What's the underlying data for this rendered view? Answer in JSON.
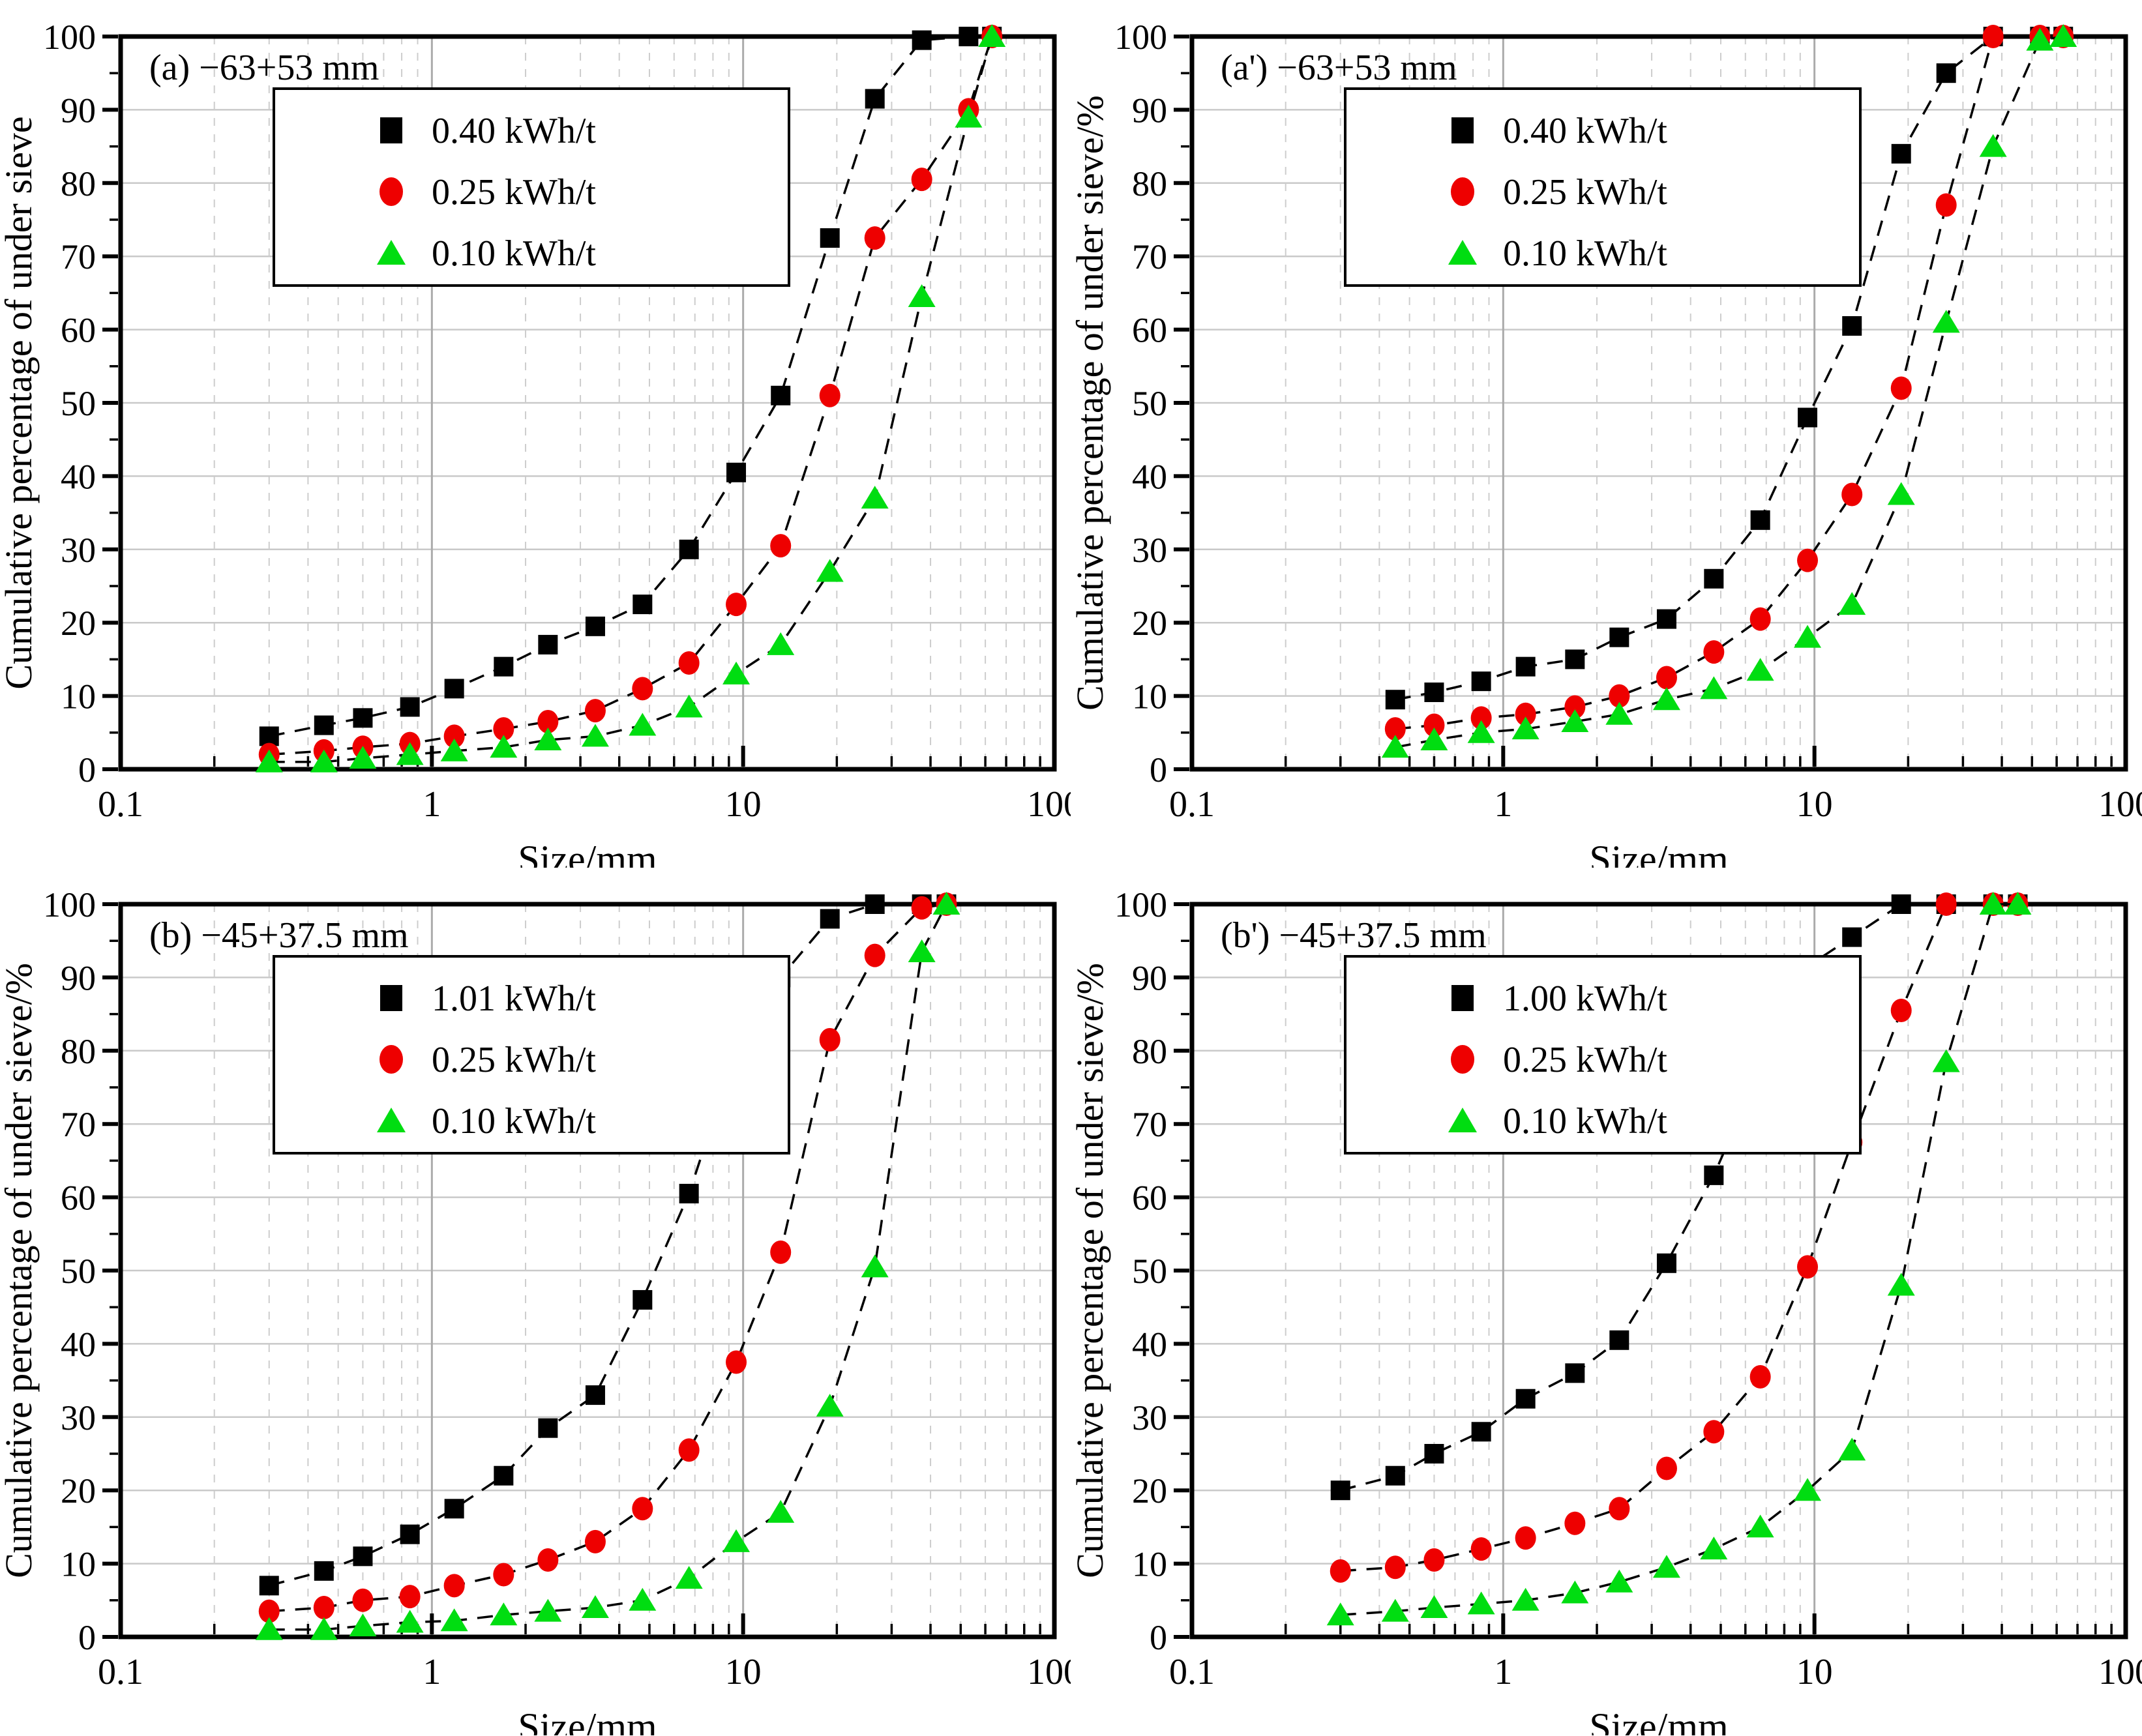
{
  "figure": {
    "background": "#ffffff",
    "xlabel": "Size/mm",
    "x_ticks": [
      "0.1",
      "1",
      "10",
      "100"
    ],
    "colors": {
      "black": "#000000",
      "red": "#ee0000",
      "green": "#00dd11",
      "grid_major": "#c9c9c9",
      "grid_decade": "#aaaaaa"
    }
  },
  "chart_data": [
    {
      "type": "line",
      "panel_label": "(a)",
      "title": "−63+53 mm",
      "xlabel": "Size/mm",
      "ylabel": "Cumulative percentage of under sieve",
      "x_scale": "log",
      "xlim": [
        0.1,
        100
      ],
      "ylim": [
        0,
        100
      ],
      "x_ticks": [
        "0.1",
        "1",
        "10",
        "100"
      ],
      "y_tick_step": 10,
      "grid": true,
      "legend_position": "top-left",
      "series": [
        {
          "name": "0.40 kWh/t",
          "marker": "square",
          "color": "#000000",
          "x": [
            0.3,
            0.45,
            0.6,
            0.85,
            1.18,
            1.7,
            2.36,
            3.35,
            4.75,
            6.7,
            9.5,
            13.2,
            19,
            26.5,
            37.5,
            53,
            63
          ],
          "y": [
            4.5,
            6,
            7,
            8.5,
            11,
            14,
            17,
            19.5,
            22.5,
            30,
            40.5,
            51,
            72.5,
            91.5,
            99.5,
            100,
            100
          ]
        },
        {
          "name": "0.25 kWh/t",
          "marker": "circle",
          "color": "#ee0000",
          "x": [
            0.3,
            0.45,
            0.6,
            0.85,
            1.18,
            1.7,
            2.36,
            3.35,
            4.75,
            6.7,
            9.5,
            13.2,
            19,
            26.5,
            37.5,
            53,
            63
          ],
          "y": [
            2,
            2.5,
            3,
            3.5,
            4.5,
            5.5,
            6.5,
            8,
            11,
            14.5,
            22.5,
            30.5,
            51,
            72.5,
            80.5,
            90,
            100
          ]
        },
        {
          "name": "0.10 kWh/t",
          "marker": "triangle",
          "color": "#00dd11",
          "x": [
            0.3,
            0.45,
            0.6,
            0.85,
            1.18,
            1.7,
            2.36,
            3.35,
            4.75,
            6.7,
            9.5,
            13.2,
            19,
            26.5,
            37.5,
            53,
            63
          ],
          "y": [
            1,
            1,
            1.5,
            2,
            2.5,
            3,
            4,
            4.5,
            6,
            8.5,
            13,
            17,
            27,
            37,
            64.5,
            89,
            100
          ]
        }
      ]
    },
    {
      "type": "line",
      "panel_label": "(a')",
      "title": "−63+53 mm",
      "xlabel": "Size/mm",
      "ylabel": "Cumulative percentage of under sieve/%",
      "x_scale": "log",
      "xlim": [
        0.1,
        100
      ],
      "ylim": [
        0,
        100
      ],
      "x_ticks": [
        "0.1",
        "1",
        "10",
        "100"
      ],
      "y_tick_step": 10,
      "grid": true,
      "legend_position": "top-left",
      "series": [
        {
          "name": "0.40 kWh/t",
          "marker": "square",
          "color": "#000000",
          "x": [
            0.45,
            0.6,
            0.85,
            1.18,
            1.7,
            2.36,
            3.35,
            4.75,
            6.7,
            9.5,
            13.2,
            19,
            26.5,
            37.5,
            53,
            63
          ],
          "y": [
            9.5,
            10.5,
            12,
            14,
            15,
            18,
            20.5,
            26,
            34,
            48,
            60.5,
            84,
            95,
            100,
            100,
            100
          ]
        },
        {
          "name": "0.25 kWh/t",
          "marker": "circle",
          "color": "#ee0000",
          "x": [
            0.45,
            0.6,
            0.85,
            1.18,
            1.7,
            2.36,
            3.35,
            4.75,
            6.7,
            9.5,
            13.2,
            19,
            26.5,
            37.5,
            53,
            63
          ],
          "y": [
            5.5,
            6,
            7,
            7.5,
            8.5,
            10,
            12.5,
            16,
            20.5,
            28.5,
            37.5,
            52,
            77,
            100,
            100,
            100
          ]
        },
        {
          "name": "0.10 kWh/t",
          "marker": "triangle",
          "color": "#00dd11",
          "x": [
            0.45,
            0.6,
            0.85,
            1.18,
            1.7,
            2.36,
            3.35,
            4.75,
            6.7,
            9.5,
            13.2,
            19,
            26.5,
            37.5,
            53,
            63
          ],
          "y": [
            3,
            4,
            5,
            5.5,
            6.5,
            7.5,
            9.5,
            11,
            13.5,
            18,
            22.5,
            37.5,
            61,
            85,
            99.5,
            100
          ]
        }
      ]
    },
    {
      "type": "line",
      "panel_label": "(b)",
      "title": "−45+37.5 mm",
      "xlabel": "Size/mm",
      "ylabel": "Cumulative percentage of under sieve/%",
      "x_scale": "log",
      "xlim": [
        0.1,
        100
      ],
      "ylim": [
        0,
        100
      ],
      "x_ticks": [
        "0.1",
        "1",
        "10",
        "100"
      ],
      "y_tick_step": 10,
      "grid": true,
      "legend_position": "top-left",
      "series": [
        {
          "name": "1.01 kWh/t",
          "marker": "square",
          "color": "#000000",
          "x": [
            0.3,
            0.45,
            0.6,
            0.85,
            1.18,
            1.7,
            2.36,
            3.35,
            4.75,
            6.7,
            9.5,
            13.2,
            19,
            26.5,
            37.5,
            45
          ],
          "y": [
            7,
            9,
            11,
            14,
            17.5,
            22,
            28.5,
            33,
            46,
            60.5,
            80,
            90,
            98,
            100,
            100,
            100
          ]
        },
        {
          "name": "0.25 kWh/t",
          "marker": "circle",
          "color": "#ee0000",
          "x": [
            0.3,
            0.45,
            0.6,
            0.85,
            1.18,
            1.7,
            2.36,
            3.35,
            4.75,
            6.7,
            9.5,
            13.2,
            19,
            26.5,
            37.5,
            45
          ],
          "y": [
            3.5,
            4,
            5,
            5.5,
            7,
            8.5,
            10.5,
            13,
            17.5,
            25.5,
            37.5,
            52.5,
            81.5,
            93,
            99.5,
            100
          ]
        },
        {
          "name": "0.10 kWh/t",
          "marker": "triangle",
          "color": "#00dd11",
          "x": [
            0.3,
            0.45,
            0.6,
            0.85,
            1.18,
            1.7,
            2.36,
            3.35,
            4.75,
            6.7,
            9.5,
            13.2,
            19,
            26.5,
            37.5,
            45
          ],
          "y": [
            1,
            1,
            1.5,
            2,
            2.2,
            3,
            3.5,
            4,
            5,
            8,
            13,
            17,
            31.5,
            50.5,
            93.5,
            100
          ]
        }
      ]
    },
    {
      "type": "line",
      "panel_label": "(b')",
      "title": "−45+37.5 mm",
      "xlabel": "Size/mm",
      "ylabel": "Cumulative percentage of under sieve/%",
      "x_scale": "log",
      "xlim": [
        0.1,
        100
      ],
      "ylim": [
        0,
        100
      ],
      "x_ticks": [
        "0.1",
        "1",
        "10",
        "100"
      ],
      "y_tick_step": 10,
      "grid": true,
      "legend_position": "top-left",
      "series": [
        {
          "name": "1.00 kWh/t",
          "marker": "square",
          "color": "#000000",
          "x": [
            0.3,
            0.45,
            0.6,
            0.85,
            1.18,
            1.7,
            2.36,
            3.35,
            4.75,
            6.7,
            9.5,
            13.2,
            19,
            26.5,
            37.5,
            45
          ],
          "y": [
            20,
            22,
            25,
            28,
            32.5,
            36,
            40.5,
            51,
            63,
            77.5,
            91.5,
            95.5,
            100,
            100,
            100,
            100
          ]
        },
        {
          "name": "0.25 kWh/t",
          "marker": "circle",
          "color": "#ee0000",
          "x": [
            0.3,
            0.45,
            0.6,
            0.85,
            1.18,
            1.7,
            2.36,
            3.35,
            4.75,
            6.7,
            9.5,
            13.2,
            19,
            26.5,
            37.5,
            45
          ],
          "y": [
            9,
            9.5,
            10.5,
            12,
            13.5,
            15.5,
            17.5,
            23,
            28,
            35.5,
            50.5,
            67.5,
            85.5,
            100,
            100,
            100
          ]
        },
        {
          "name": "0.10 kWh/t",
          "marker": "triangle",
          "color": "#00dd11",
          "x": [
            0.3,
            0.45,
            0.6,
            0.85,
            1.18,
            1.7,
            2.36,
            3.35,
            4.75,
            6.7,
            9.5,
            13.2,
            19,
            26.5,
            37.5,
            45
          ],
          "y": [
            3,
            3.5,
            4,
            4.5,
            5,
            6,
            7.5,
            9.5,
            12,
            15,
            20,
            25.5,
            48,
            78.5,
            100,
            100
          ]
        }
      ]
    }
  ]
}
